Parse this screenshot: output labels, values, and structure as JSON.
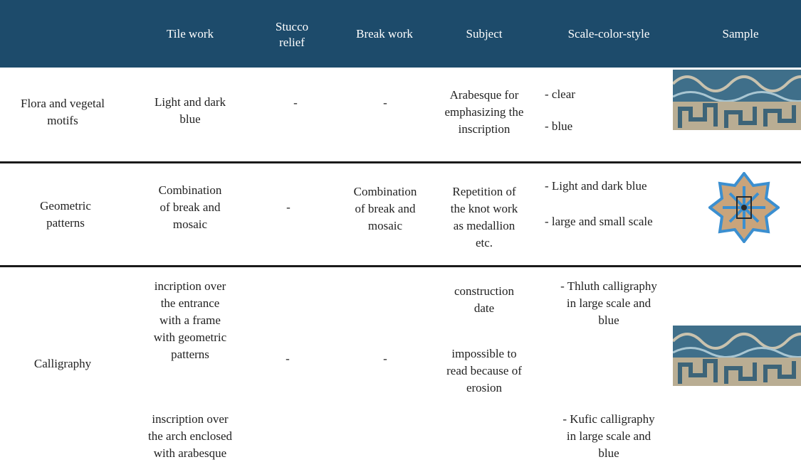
{
  "header": {
    "columns": [
      "Tile work",
      "Stucco relief",
      "Break work",
      "Subject",
      "Scale-color-style",
      "Sample"
    ]
  },
  "rows": [
    {
      "label": [
        [
          "Flora and vegetal",
          "motifs"
        ]
      ],
      "tile_work": [
        [
          "Light and dark",
          "blue"
        ]
      ],
      "stucco_relief": [
        [
          "-"
        ]
      ],
      "break_work": [
        [
          "-"
        ]
      ],
      "subject": [
        [
          "Arabesque for",
          "emphasizing the",
          "inscription"
        ]
      ],
      "scale_color_style": [
        [
          "- clear"
        ],
        [
          "- blue"
        ]
      ]
    },
    {
      "label": [
        [
          "Geometric",
          "patterns"
        ]
      ],
      "tile_work": [
        [
          "Combination",
          "of break and",
          "mosaic"
        ]
      ],
      "stucco_relief": [
        [
          "-"
        ]
      ],
      "break_work": [
        [
          "Combination",
          "of break and",
          "mosaic"
        ]
      ],
      "subject": [
        [
          "Repetition of",
          "the knot work",
          "as medallion",
          "etc."
        ]
      ],
      "scale_color_style": [
        [
          "- Light and dark blue"
        ],
        [
          "- large and small scale"
        ]
      ]
    },
    {
      "label": [
        [
          "Calligraphy"
        ]
      ],
      "tile_work": [
        [
          "incription over",
          "the entrance",
          "with a frame",
          "with geometric",
          "patterns"
        ],
        [
          "inscription over",
          "the arch enclosed",
          "with arabesque"
        ]
      ],
      "stucco_relief": [
        [
          "-"
        ]
      ],
      "break_work": [
        [
          "-"
        ]
      ],
      "subject": [
        [
          "construction",
          "date"
        ],
        [
          "impossible to",
          "read because of",
          "erosion"
        ]
      ],
      "scale_color_style": [
        [
          "- Thluth calligraphy",
          "in large scale and",
          "blue"
        ],
        [
          "- Kufic calligraphy",
          "in large scale and",
          "blue"
        ]
      ]
    }
  ]
}
